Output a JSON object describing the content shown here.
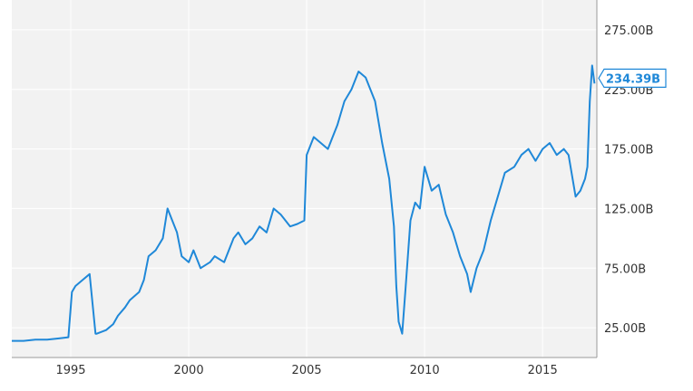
{
  "chart_data": {
    "type": "line",
    "title": "",
    "xlabel": "",
    "ylabel": "",
    "x_range": [
      1992.5,
      2017.3
    ],
    "y_range": [
      0,
      300
    ],
    "x_ticks": [
      {
        "value": 1995,
        "label": "1995"
      },
      {
        "value": 2000,
        "label": "2000"
      },
      {
        "value": 2005,
        "label": "2005"
      },
      {
        "value": 2010,
        "label": "2010"
      },
      {
        "value": 2015,
        "label": "2015"
      }
    ],
    "y_ticks": [
      {
        "value": 25,
        "label": "25.00B"
      },
      {
        "value": 75,
        "label": "75.00B"
      },
      {
        "value": 125,
        "label": "125.00B"
      },
      {
        "value": 175,
        "label": "175.00B"
      },
      {
        "value": 225,
        "label": "225.00B"
      },
      {
        "value": 275,
        "label": "275.00B"
      }
    ],
    "grid": true,
    "line_color": "#1f88d8",
    "plot_background": "#f2f2f2",
    "last_value": {
      "value": 234.39,
      "label": "234.39B"
    },
    "series": [
      {
        "x": [
          1992.5,
          1993.0,
          1993.5,
          1994.0,
          1994.5,
          1994.9,
          1995.05,
          1995.2,
          1995.5,
          1995.8,
          1996.05,
          1996.1,
          1996.5,
          1996.8,
          1997.0,
          1997.3,
          1997.5,
          1997.9,
          1998.1,
          1998.3,
          1998.6,
          1998.9,
          1999.1,
          1999.3,
          1999.5,
          1999.7,
          2000.0,
          2000.2,
          2000.5,
          2000.9,
          2001.1,
          2001.5,
          2001.9,
          2002.1,
          2002.4,
          2002.7,
          2003.0,
          2003.3,
          2003.6,
          2003.9,
          2004.1,
          2004.3,
          2004.6,
          2004.9,
          2005.0,
          2005.3,
          2005.6,
          2005.9,
          2006.1,
          2006.3,
          2006.6,
          2006.9,
          2007.2,
          2007.5,
          2007.9,
          2008.2,
          2008.5,
          2008.7,
          2008.8,
          2008.9,
          2009.05,
          2009.2,
          2009.4,
          2009.6,
          2009.8,
          2010.0,
          2010.3,
          2010.6,
          2010.9,
          2011.2,
          2011.5,
          2011.8,
          2011.95,
          2012.2,
          2012.5,
          2012.8,
          2013.1,
          2013.4,
          2013.8,
          2014.1,
          2014.4,
          2014.7,
          2015.0,
          2015.3,
          2015.6,
          2015.9,
          2016.1,
          2016.4,
          2016.6,
          2016.8,
          2016.9,
          2017.0,
          2017.1,
          2017.2
        ],
        "y": [
          14,
          14,
          15,
          15,
          16,
          17,
          55,
          60,
          65,
          70,
          20,
          20,
          23,
          28,
          35,
          42,
          48,
          55,
          65,
          85,
          90,
          100,
          125,
          115,
          105,
          85,
          80,
          90,
          75,
          80,
          85,
          80,
          100,
          105,
          95,
          100,
          110,
          105,
          125,
          120,
          115,
          110,
          112,
          115,
          170,
          185,
          180,
          175,
          185,
          195,
          215,
          225,
          240,
          235,
          215,
          180,
          150,
          110,
          60,
          30,
          20,
          60,
          115,
          130,
          125,
          160,
          140,
          145,
          120,
          105,
          85,
          70,
          55,
          75,
          90,
          115,
          135,
          155,
          160,
          170,
          175,
          165,
          175,
          180,
          170,
          175,
          170,
          135,
          140,
          150,
          160,
          215,
          245,
          230
        ]
      }
    ]
  }
}
